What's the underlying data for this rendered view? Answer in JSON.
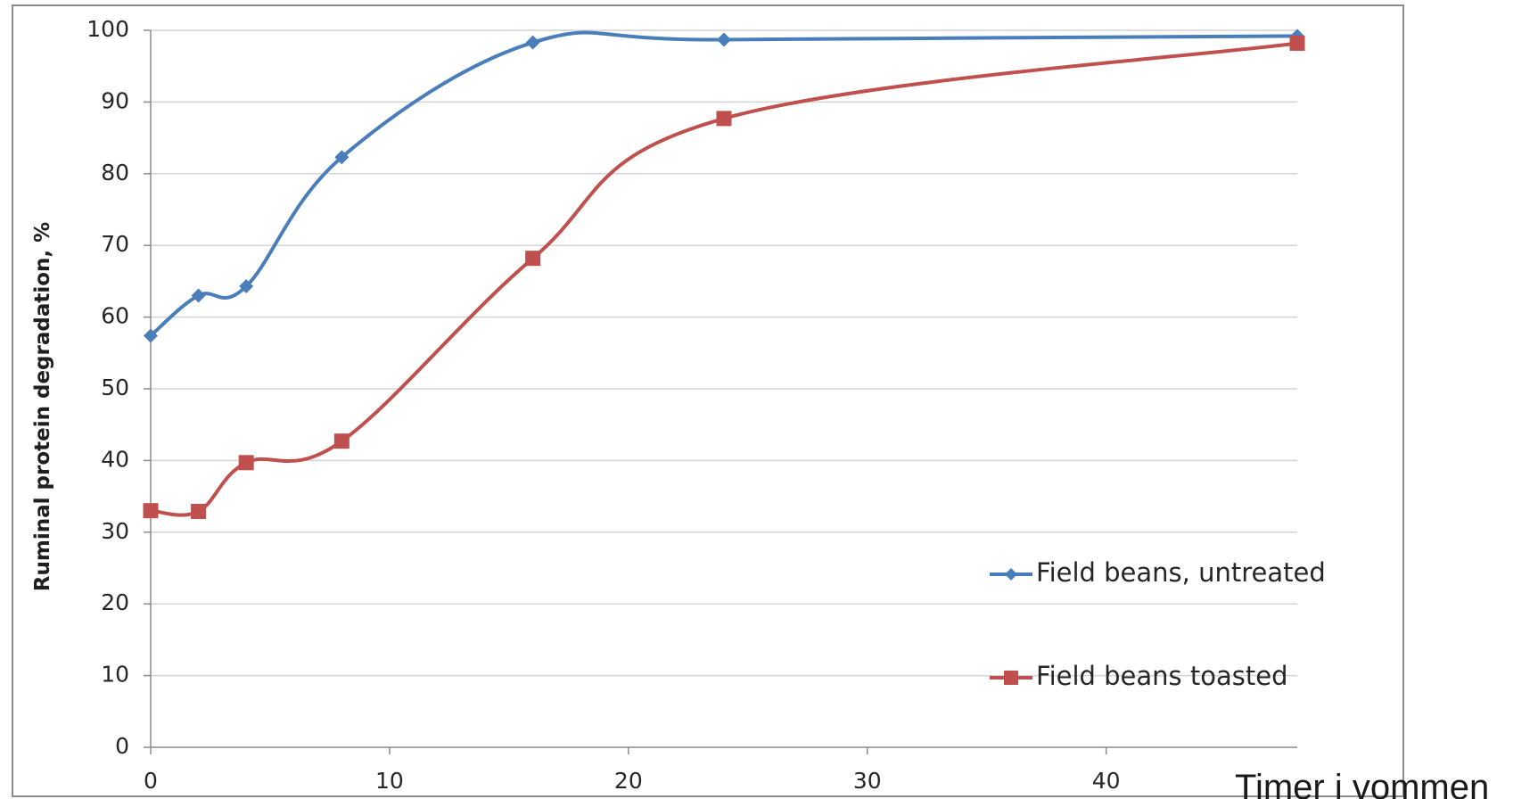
{
  "chart_data": {
    "type": "line",
    "title": "",
    "xlabel": "Timer i vommen",
    "ylabel": "Ruminal protein degradation, %",
    "xlim": [
      0,
      48
    ],
    "ylim": [
      0,
      100
    ],
    "xticks": [
      "0",
      "10",
      "20",
      "30",
      "40"
    ],
    "yticks": [
      "0",
      "10",
      "20",
      "30",
      "40",
      "50",
      "60",
      "70",
      "80",
      "90",
      "100"
    ],
    "grid": "horizontal",
    "legend_position": "right",
    "smooth": true,
    "series": [
      {
        "name": "Field beans, untreated",
        "color": "#4a7ebb",
        "marker": "diamond",
        "x": [
          0,
          2,
          4,
          8,
          16,
          24,
          48
        ],
        "y": [
          57.4,
          63.0,
          64.3,
          82.3,
          98.3,
          98.7,
          99.2
        ]
      },
      {
        "name": "Field beans toasted",
        "color": "#c0504d",
        "marker": "square",
        "x": [
          0,
          2,
          4,
          8,
          16,
          24,
          48
        ],
        "y": [
          33.0,
          32.9,
          39.7,
          42.7,
          68.2,
          87.7,
          98.2
        ]
      }
    ]
  }
}
